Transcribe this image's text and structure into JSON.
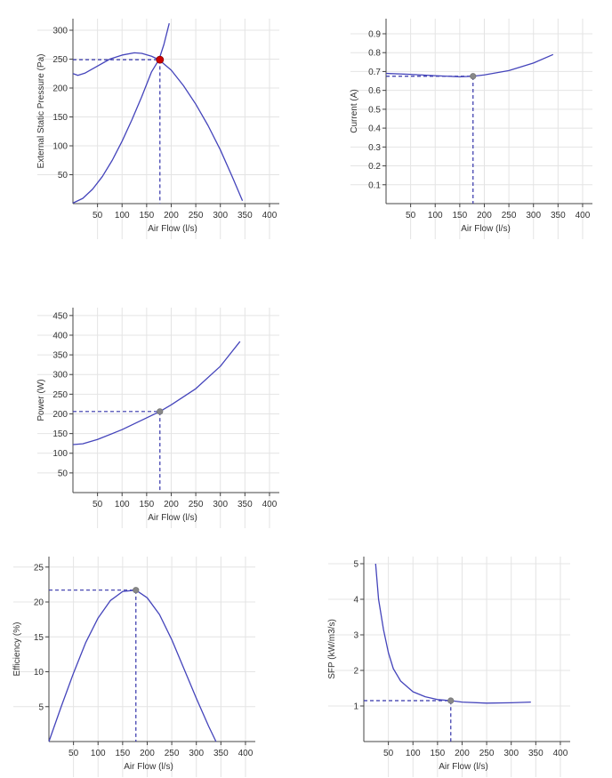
{
  "chart_data": [
    {
      "type": "line",
      "xlabel": "Air Flow (l/s)",
      "ylabel": "External Static Pressure (Pa)",
      "xlim": [
        0,
        420
      ],
      "ylim": [
        0,
        320
      ],
      "xticks": [
        50,
        100,
        150,
        200,
        250,
        300,
        350,
        400
      ],
      "yticks": [
        50,
        100,
        150,
        200,
        250,
        300
      ],
      "series": [
        {
          "values": [
            [
              0,
              225
            ],
            [
              10,
              222
            ],
            [
              25,
              226
            ],
            [
              50,
              238
            ],
            [
              75,
              250
            ],
            [
              100,
              257
            ],
            [
              125,
              261
            ],
            [
              140,
              260
            ],
            [
              160,
              255
            ],
            [
              175,
              249
            ],
            [
              200,
              231
            ],
            [
              225,
              204
            ],
            [
              250,
              172
            ],
            [
              275,
              135
            ],
            [
              300,
              93
            ],
            [
              325,
              45
            ],
            [
              345,
              5
            ]
          ]
        },
        {
          "values": [
            [
              0,
              1
            ],
            [
              20,
              9
            ],
            [
              40,
              25
            ],
            [
              60,
              47
            ],
            [
              80,
              75
            ],
            [
              100,
              108
            ],
            [
              120,
              145
            ],
            [
              140,
              185
            ],
            [
              160,
              228
            ],
            [
              175,
              249
            ],
            [
              185,
              275
            ],
            [
              196,
              312
            ]
          ]
        }
      ],
      "operating_point": [
        177,
        249
      ],
      "point_color": "#cc0000",
      "line_color": "#4444bb"
    },
    {
      "type": "line",
      "xlabel": "Air Flow (l/s)",
      "ylabel": "Current (A)",
      "xlim": [
        0,
        420
      ],
      "ylim": [
        0,
        0.98
      ],
      "xticks": [
        50,
        100,
        150,
        200,
        250,
        300,
        350,
        400
      ],
      "yticks": [
        0.1,
        0.2,
        0.3,
        0.4,
        0.5,
        0.6,
        0.7,
        0.8,
        0.9
      ],
      "yticklabels": [
        "0.1",
        "0.2",
        "0.3",
        "0.4",
        "0.5",
        "0.6",
        "0.7",
        "0.8",
        "0.9"
      ],
      "series": [
        {
          "values": [
            [
              0,
              0.69
            ],
            [
              50,
              0.685
            ],
            [
              100,
              0.678
            ],
            [
              150,
              0.672
            ],
            [
              177,
              0.675
            ],
            [
              200,
              0.682
            ],
            [
              250,
              0.705
            ],
            [
              300,
              0.745
            ],
            [
              340,
              0.79
            ]
          ]
        }
      ],
      "operating_point": [
        177,
        0.675
      ],
      "point_color": "#888888",
      "line_color": "#4444bb"
    },
    {
      "type": "line",
      "xlabel": "Air Flow (l/s)",
      "ylabel": "Power (W)",
      "xlim": [
        0,
        420
      ],
      "ylim": [
        0,
        470
      ],
      "xticks": [
        50,
        100,
        150,
        200,
        250,
        300,
        350,
        400
      ],
      "yticks": [
        50,
        100,
        150,
        200,
        250,
        300,
        350,
        400,
        450
      ],
      "series": [
        {
          "values": [
            [
              0,
              122
            ],
            [
              20,
              124
            ],
            [
              50,
              135
            ],
            [
              100,
              160
            ],
            [
              150,
              190
            ],
            [
              177,
              206
            ],
            [
              200,
              223
            ],
            [
              250,
              264
            ],
            [
              300,
              321
            ],
            [
              340,
              384
            ]
          ]
        }
      ],
      "operating_point": [
        177,
        206
      ],
      "point_color": "#888888",
      "line_color": "#4444bb"
    },
    {
      "type": "line",
      "xlabel": "Air Flow (l/s)",
      "ylabel": "Efficiency (%)",
      "xlim": [
        0,
        420
      ],
      "ylim": [
        0,
        26.5
      ],
      "xticks": [
        50,
        100,
        150,
        200,
        250,
        300,
        350,
        400
      ],
      "yticks": [
        5,
        10,
        15,
        20,
        25
      ],
      "series": [
        {
          "values": [
            [
              0,
              0
            ],
            [
              25,
              5
            ],
            [
              50,
              9.8
            ],
            [
              75,
              14.2
            ],
            [
              100,
              17.7
            ],
            [
              125,
              20.2
            ],
            [
              150,
              21.5
            ],
            [
              177,
              21.7
            ],
            [
              200,
              20.6
            ],
            [
              225,
              18.2
            ],
            [
              250,
              14.6
            ],
            [
              275,
              10.4
            ],
            [
              300,
              6.2
            ],
            [
              325,
              2.2
            ],
            [
              340,
              0
            ]
          ]
        }
      ],
      "operating_point": [
        177,
        21.7
      ],
      "point_color": "#888888",
      "line_color": "#4444bb"
    },
    {
      "type": "line",
      "xlabel": "Air Flow (l/s)",
      "ylabel": "SFP (kW/m3/s)",
      "xlim": [
        0,
        420
      ],
      "ylim": [
        0,
        5.2
      ],
      "xticks": [
        50,
        100,
        150,
        200,
        250,
        300,
        350,
        400
      ],
      "yticks": [
        1,
        2,
        3,
        4,
        5
      ],
      "series": [
        {
          "values": [
            [
              24,
              5.0
            ],
            [
              30,
              4.0
            ],
            [
              40,
              3.15
            ],
            [
              50,
              2.5
            ],
            [
              60,
              2.05
            ],
            [
              75,
              1.7
            ],
            [
              100,
              1.4
            ],
            [
              125,
              1.26
            ],
            [
              150,
              1.18
            ],
            [
              177,
              1.15
            ],
            [
              200,
              1.11
            ],
            [
              250,
              1.08
            ],
            [
              300,
              1.09
            ],
            [
              340,
              1.11
            ]
          ]
        }
      ],
      "operating_point": [
        177,
        1.15
      ],
      "point_color": "#888888",
      "line_color": "#4444bb"
    }
  ]
}
